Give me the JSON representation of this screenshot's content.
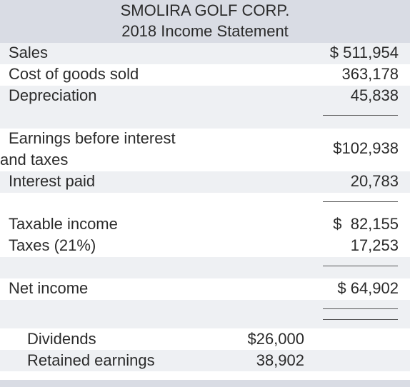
{
  "statement": {
    "company": "SMOLIRA GOLF CORP.",
    "title": "2018 Income Statement",
    "rows": {
      "sales": {
        "label": "Sales",
        "value": "$ 511,954"
      },
      "cogs": {
        "label": "Cost of goods sold",
        "value": "363,178"
      },
      "depreciation": {
        "label": "Depreciation",
        "value": "45,838"
      },
      "ebit": {
        "label_line1": "Earnings before interest",
        "label_line2": "and taxes",
        "value": "$102,938"
      },
      "interest": {
        "label": "Interest paid",
        "value": "20,783"
      },
      "taxable_income": {
        "label": "Taxable income",
        "value": "$  82,155"
      },
      "taxes": {
        "label": "Taxes (21%)",
        "value": "17,253"
      },
      "net_income": {
        "label": "Net income",
        "value": "$ 64,902"
      }
    },
    "allocation": {
      "dividends": {
        "label": "Dividends",
        "value": "$26,000"
      },
      "retained_earnings": {
        "label": "Retained earnings",
        "value": "38,902"
      }
    }
  }
}
